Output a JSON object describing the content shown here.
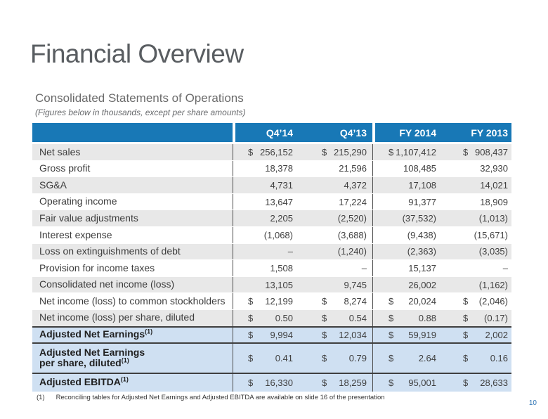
{
  "title": "Financial Overview",
  "subtitle": {
    "heading": "Consolidated Statements of Operations",
    "note": "(Figures below in thousands, except per share amounts)"
  },
  "table": {
    "columns": [
      "Q4’14",
      "Q4’13",
      "FY 2014",
      "FY 2013"
    ],
    "rows": [
      {
        "label_lines": [
          "Net sales"
        ],
        "sup": "",
        "highlight": false,
        "cells": [
          [
            "$",
            "256,152"
          ],
          [
            "$",
            "215,290"
          ],
          [
            "$",
            "1,107,412"
          ],
          [
            "$",
            "908,437"
          ]
        ]
      },
      {
        "label_lines": [
          "Gross profit"
        ],
        "sup": "",
        "highlight": false,
        "cells": [
          [
            "",
            "18,378"
          ],
          [
            "",
            "21,596"
          ],
          [
            "",
            "108,485"
          ],
          [
            "",
            "32,930"
          ]
        ]
      },
      {
        "label_lines": [
          "SG&A"
        ],
        "sup": "",
        "highlight": false,
        "cells": [
          [
            "",
            "4,731"
          ],
          [
            "",
            "4,372"
          ],
          [
            "",
            "17,108"
          ],
          [
            "",
            "14,021"
          ]
        ]
      },
      {
        "label_lines": [
          "Operating income"
        ],
        "sup": "",
        "highlight": false,
        "cells": [
          [
            "",
            "13,647"
          ],
          [
            "",
            "17,224"
          ],
          [
            "",
            "91,377"
          ],
          [
            "",
            "18,909"
          ]
        ]
      },
      {
        "label_lines": [
          "Fair value adjustments"
        ],
        "sup": "",
        "highlight": false,
        "cells": [
          [
            "",
            "2,205"
          ],
          [
            "",
            "(2,520)"
          ],
          [
            "",
            "(37,532)"
          ],
          [
            "",
            "(1,013)"
          ]
        ]
      },
      {
        "label_lines": [
          "Interest expense"
        ],
        "sup": "",
        "highlight": false,
        "cells": [
          [
            "",
            "(1,068)"
          ],
          [
            "",
            "(3,688)"
          ],
          [
            "",
            "(9,438)"
          ],
          [
            "",
            "(15,671)"
          ]
        ]
      },
      {
        "label_lines": [
          "Loss on extinguishments of debt"
        ],
        "sup": "",
        "highlight": false,
        "cells": [
          [
            "",
            "–"
          ],
          [
            "",
            "(1,240)"
          ],
          [
            "",
            "(2,363)"
          ],
          [
            "",
            "(3,035)"
          ]
        ]
      },
      {
        "label_lines": [
          "Provision for income taxes"
        ],
        "sup": "",
        "highlight": false,
        "cells": [
          [
            "",
            "1,508"
          ],
          [
            "",
            "–"
          ],
          [
            "",
            "15,137"
          ],
          [
            "",
            "–"
          ]
        ]
      },
      {
        "label_lines": [
          "Consolidated net  income (loss)"
        ],
        "sup": "",
        "highlight": false,
        "cells": [
          [
            "",
            "13,105"
          ],
          [
            "",
            "9,745"
          ],
          [
            "",
            "26,002"
          ],
          [
            "",
            "(1,162)"
          ]
        ]
      },
      {
        "label_lines": [
          "Net income (loss) to common stockholders"
        ],
        "sup": "",
        "highlight": false,
        "cells": [
          [
            "$",
            "12,199"
          ],
          [
            "$",
            "8,274"
          ],
          [
            "$",
            "20,024"
          ],
          [
            "$",
            "(2,046)"
          ]
        ]
      },
      {
        "label_lines": [
          "Net income (loss) per share, diluted"
        ],
        "sup": "",
        "highlight": false,
        "cells": [
          [
            "$",
            "0.50"
          ],
          [
            "$",
            "0.54"
          ],
          [
            "$",
            "0.88"
          ],
          [
            "$",
            "(0.17)"
          ]
        ]
      },
      {
        "label_lines": [
          "Adjusted Net Earnings"
        ],
        "sup": "(1)",
        "highlight": true,
        "cells": [
          [
            "$",
            "9,994"
          ],
          [
            "$",
            "12,034"
          ],
          [
            "$",
            "59,919"
          ],
          [
            "$",
            "2,002"
          ]
        ]
      },
      {
        "label_lines": [
          "Adjusted Net Earnings",
          "per share, diluted"
        ],
        "sup": "(1)",
        "highlight": true,
        "cells": [
          [
            "$",
            "0.41"
          ],
          [
            "$",
            "0.79"
          ],
          [
            "$",
            "2.64"
          ],
          [
            "$",
            "0.16"
          ]
        ]
      },
      {
        "label_lines": [
          "Adjusted EBITDA"
        ],
        "sup": "(1)",
        "highlight": true,
        "cells": [
          [
            "$",
            "16,330"
          ],
          [
            "$",
            "18,259"
          ],
          [
            "$",
            "95,001"
          ],
          [
            "$",
            "28,633"
          ]
        ]
      }
    ]
  },
  "footnote": {
    "marker": "(1)",
    "text": "Reconciling tables for Adjusted Net Earnings and Adjusted EBITDA are available on slide 16 of the presentation"
  },
  "page_number": "10",
  "colors": {
    "header_blue": "#1878b6",
    "highlight_blue": "#cfe0f2",
    "stripe_gray": "#e8e8e8",
    "divider_dark": "#4c4c4c",
    "accent_blue": "#2e74b5",
    "title_gray": "#595d61"
  }
}
